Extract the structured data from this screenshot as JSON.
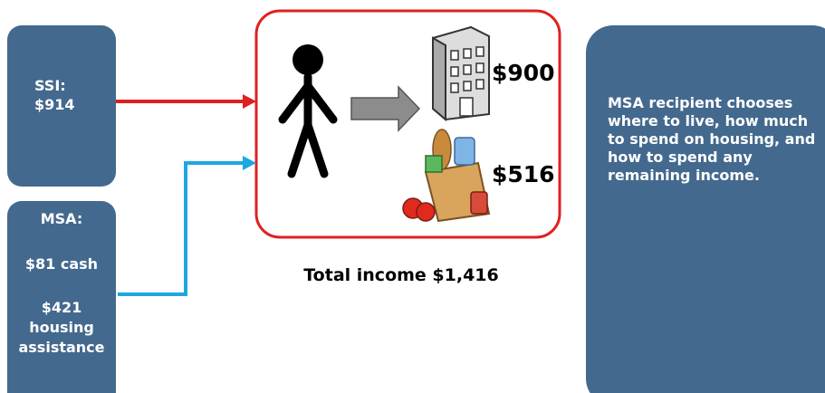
{
  "ssi": {
    "label": "SSI:",
    "amount": "$914"
  },
  "msa": {
    "label": "MSA:",
    "cash": "$81 cash",
    "housing": [
      "$421",
      "housing",
      "assistance"
    ]
  },
  "housing_amount": "$900",
  "food_amount": "$516",
  "total": "Total income $1,416",
  "note": "MSA recipient chooses where to live, how much to spend on housing, and how to spend any remaining income."
}
